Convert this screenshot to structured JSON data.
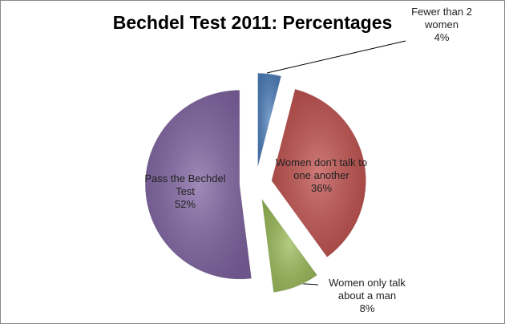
{
  "chart_data": {
    "type": "pie",
    "title": "Bechdel Test 2011: Percentages",
    "categories": [
      "Fewer than 2 women",
      "Women don't talk to one another",
      "Women only talk about a man",
      "Pass the Bechdel Test"
    ],
    "values": [
      4,
      36,
      8,
      52
    ],
    "value_labels": [
      "4%",
      "36%",
      "8%",
      "52%"
    ],
    "colors": [
      "#4f81bd",
      "#c0504d",
      "#9bbb59",
      "#8064a2"
    ]
  }
}
